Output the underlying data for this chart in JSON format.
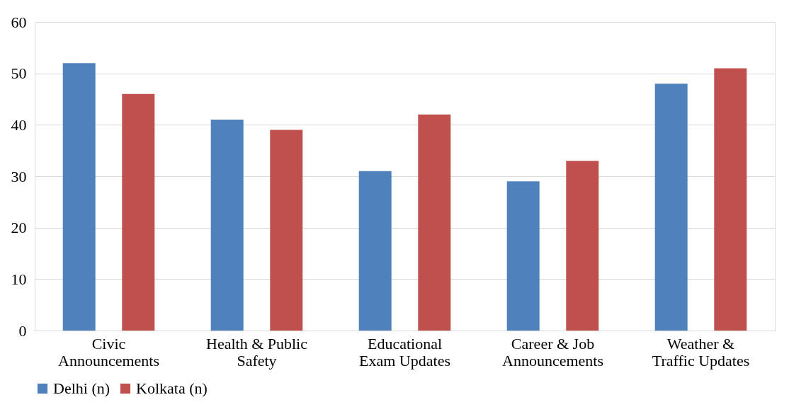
{
  "chart_data": {
    "type": "bar",
    "categories": [
      "Civic Announcements",
      "Health & Public Safety",
      "Educational Exam Updates",
      "Career & Job Announcements",
      "Weather & Traffic Updates"
    ],
    "series": [
      {
        "name": "Delhi (n)",
        "color": "#4f81bd",
        "values": [
          52,
          41,
          31,
          29,
          48
        ]
      },
      {
        "name": "Kolkata (n)",
        "color": "#c0504d",
        "values": [
          46,
          39,
          42,
          33,
          51
        ]
      }
    ],
    "ylim": [
      0,
      60
    ],
    "yticks": [
      0,
      10,
      20,
      30,
      40,
      50,
      60
    ],
    "grid": "y",
    "legend": "bottom"
  }
}
